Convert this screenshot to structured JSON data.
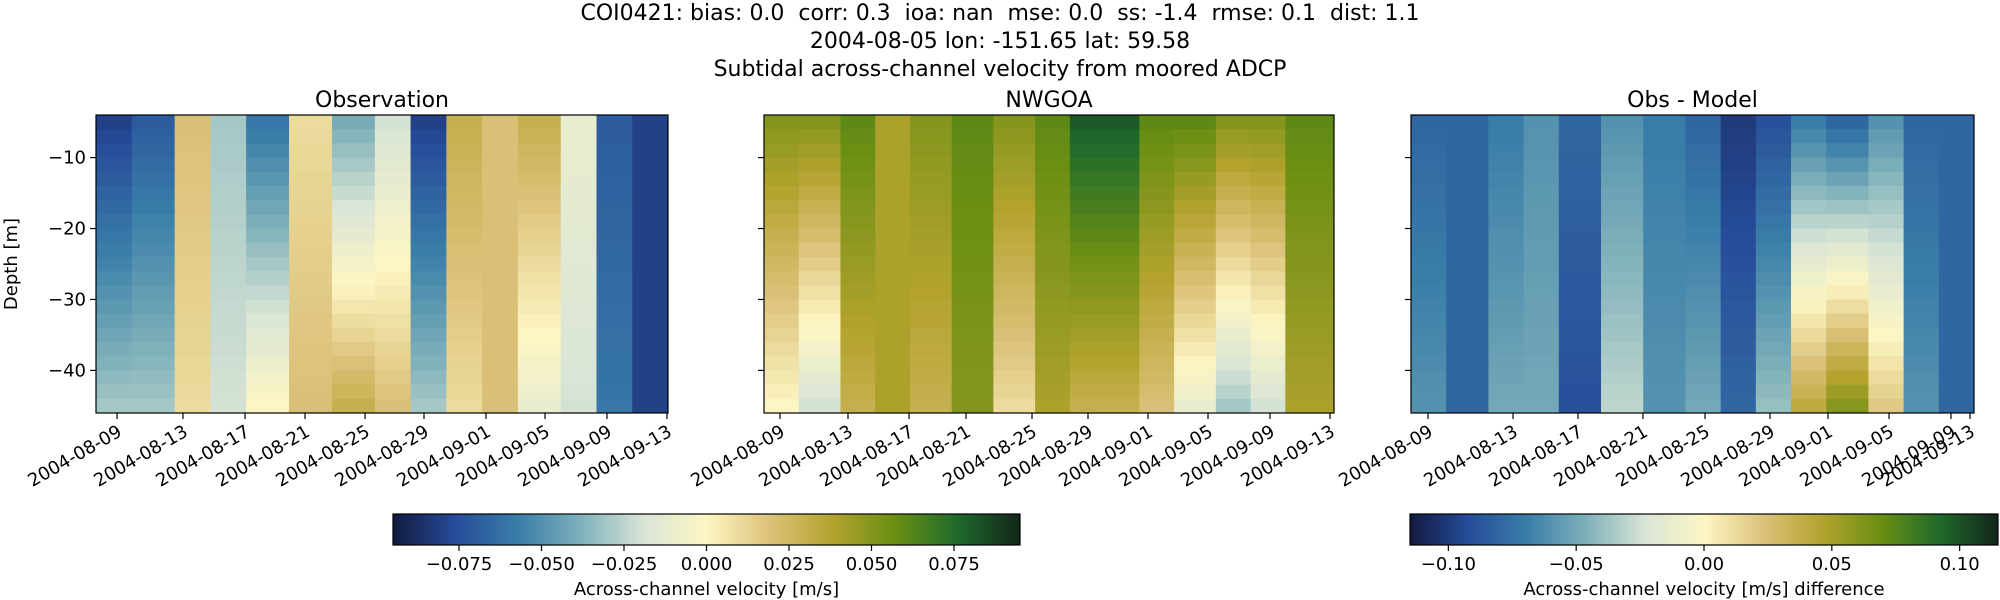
{
  "figure": {
    "title_lines": [
      "COI0421: bias: 0.0  corr: 0.3  ioa: nan  mse: 0.0  ss: -1.4  rmse: 0.1  dist: 1.1",
      "2004-08-05 lon: -151.65 lat: 59.58",
      "Subtidal across-channel velocity from moored ADCP"
    ]
  },
  "chart_data": [
    {
      "type": "heatmap",
      "title": "Observation",
      "xlabel": "",
      "ylabel": "Depth [m]",
      "x_tick_labels": [
        "2004-08-09",
        "2004-08-13",
        "2004-08-17",
        "2004-08-21",
        "2004-08-25",
        "2004-08-29",
        "2004-09-01",
        "2004-09-05",
        "2004-09-09",
        "2004-09-13"
      ],
      "y_ticks": [
        -10,
        -20,
        -30,
        -40
      ],
      "y_tick_labels": [
        "−10",
        "−20",
        "−30",
        "−40"
      ],
      "ylim": [
        -46,
        -4
      ],
      "x_range": [
        "2004-08-06",
        "2004-09-15"
      ],
      "depth_bins": [
        -4,
        -6,
        -8,
        -10,
        -12,
        -14,
        -16,
        -18,
        -20,
        -22,
        -24,
        -26,
        -28,
        -30,
        -32,
        -34,
        -36,
        -38,
        -40,
        -42,
        -44,
        -46
      ],
      "colormap": "delta",
      "vmin": -0.095,
      "vmax": 0.095,
      "profile_dates": [
        "2004-08-07",
        "2004-08-10",
        "2004-08-13",
        "2004-08-15",
        "2004-08-18",
        "2004-08-21",
        "2004-08-24",
        "2004-08-27",
        "2004-08-29",
        "2004-09-01",
        "2004-09-03",
        "2004-09-06",
        "2004-09-09",
        "2004-09-11",
        "2004-09-14"
      ],
      "velocity_surface_mps": [
        -0.08,
        -0.07,
        0.02,
        -0.03,
        -0.06,
        0.01,
        -0.04,
        -0.02,
        -0.08,
        0.03,
        0.02,
        0.03,
        -0.01,
        -0.07,
        -0.08
      ],
      "velocity_bottom_mps": [
        -0.03,
        -0.03,
        0.01,
        -0.02,
        0.0,
        0.02,
        0.03,
        0.02,
        -0.03,
        0.01,
        0.02,
        -0.01,
        -0.02,
        -0.06,
        -0.08
      ]
    },
    {
      "type": "heatmap",
      "title": "NWGOA",
      "xlabel": "",
      "ylabel": "",
      "x_tick_labels": [
        "2004-08-09",
        "2004-08-13",
        "2004-08-17",
        "2004-08-21",
        "2004-08-25",
        "2004-08-29",
        "2004-09-01",
        "2004-09-05",
        "2004-09-09",
        "2004-09-13"
      ],
      "ylim": [
        -46,
        -4
      ],
      "x_range": [
        "2004-08-06",
        "2004-09-16"
      ],
      "colormap": "delta",
      "vmin": -0.095,
      "vmax": 0.095,
      "profile_dates": [
        "2004-08-07",
        "2004-08-10",
        "2004-08-13",
        "2004-08-15",
        "2004-08-18",
        "2004-08-21",
        "2004-08-24",
        "2004-08-27",
        "2004-08-29",
        "2004-09-01",
        "2004-09-03",
        "2004-09-06",
        "2004-09-09",
        "2004-09-11",
        "2004-09-14"
      ],
      "velocity_surface_mps": [
        0.05,
        0.05,
        0.06,
        0.04,
        0.05,
        0.06,
        0.05,
        0.06,
        0.08,
        0.08,
        0.06,
        0.06,
        0.05,
        0.05,
        0.06
      ],
      "velocity_bottom_mps": [
        0.0,
        -0.02,
        0.03,
        0.04,
        0.03,
        0.05,
        0.01,
        0.04,
        0.03,
        0.03,
        0.02,
        -0.01,
        -0.03,
        -0.02,
        0.04
      ]
    },
    {
      "type": "heatmap",
      "title": "Obs - Model",
      "xlabel": "",
      "ylabel": "",
      "x_tick_labels": [
        "2004-08-09",
        "2004-08-13",
        "2004-08-17",
        "2004-08-21",
        "2004-08-25",
        "2004-08-29",
        "2004-09-01",
        "2004-09-05",
        "2004-09-09",
        "2004-09-13"
      ],
      "ylim": [
        -46,
        -4
      ],
      "x_range": [
        "2004-08-06",
        "2004-09-15"
      ],
      "colormap": "delta",
      "vmin": -0.115,
      "vmax": 0.115,
      "profile_dates": [
        "2004-08-07",
        "2004-08-10",
        "2004-08-13",
        "2004-08-15",
        "2004-08-18",
        "2004-08-21",
        "2004-08-24",
        "2004-08-27",
        "2004-08-29",
        "2004-09-01",
        "2004-09-03",
        "2004-09-06",
        "2004-09-09",
        "2004-09-11",
        "2004-09-14"
      ],
      "velocity_surface_mps": [
        -0.08,
        -0.08,
        -0.07,
        -0.06,
        -0.08,
        -0.06,
        -0.07,
        -0.08,
        -0.1,
        -0.09,
        -0.07,
        -0.08,
        -0.06,
        -0.08,
        -0.08
      ],
      "velocity_bottom_mps": [
        -0.06,
        -0.08,
        -0.05,
        -0.05,
        -0.09,
        -0.03,
        -0.06,
        -0.05,
        -0.08,
        -0.04,
        0.04,
        0.06,
        0.02,
        -0.06,
        -0.08
      ]
    }
  ],
  "colorbars": [
    {
      "label": "Across-channel velocity [m/s]",
      "vmin": -0.095,
      "vmax": 0.095,
      "ticks": [
        -0.075,
        -0.05,
        -0.025,
        0.0,
        0.025,
        0.05,
        0.075
      ],
      "tick_labels": [
        "−0.075",
        "−0.050",
        "−0.025",
        "0.000",
        "0.025",
        "0.050",
        "0.075"
      ]
    },
    {
      "label": "Across-channel velocity [m/s] difference",
      "vmin": -0.115,
      "vmax": 0.115,
      "ticks": [
        -0.1,
        -0.05,
        0.0,
        0.05,
        0.1
      ],
      "tick_labels": [
        "−0.10",
        "−0.05",
        "0.00",
        "0.05",
        "0.10"
      ]
    }
  ],
  "colors": {
    "cmap_stops": [
      "#111a3e",
      "#264c9a",
      "#3a7ea8",
      "#7fb1ba",
      "#d9e5d6",
      "#fdf6c4",
      "#dcc27a",
      "#b3a32e",
      "#6b8f13",
      "#1f6a2c",
      "#13251a"
    ]
  }
}
